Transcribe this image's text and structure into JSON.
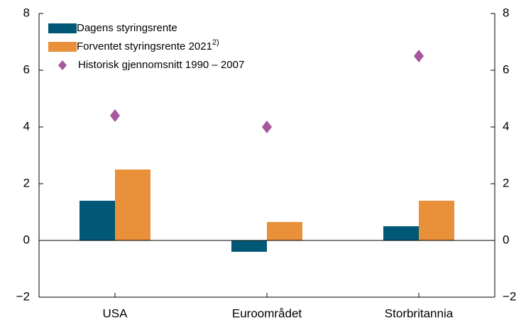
{
  "chart_data": {
    "type": "bar",
    "categories": [
      "USA",
      "Euroområdet",
      "Storbritannia"
    ],
    "series": [
      {
        "name": "Dagens styringsrente",
        "color": "#005776",
        "values": [
          1.4,
          -0.4,
          0.5
        ]
      },
      {
        "name": "Forventet styringsrente 2021",
        "name_note": "2)",
        "color": "#e8903a",
        "values": [
          2.5,
          0.65,
          1.4
        ]
      },
      {
        "name": "Historisk gjennomsnitt 1990 – 2007",
        "color": "#a6579e",
        "marker": "diamond",
        "values": [
          4.4,
          4.0,
          6.5
        ]
      }
    ],
    "ylim": [
      -2,
      8
    ],
    "yticks": [
      {
        "value": -2,
        "label": "−2"
      },
      0,
      2,
      4,
      6,
      8
    ],
    "y2lim": [
      -2,
      8
    ],
    "y2ticks": [
      {
        "value": -2,
        "label": "−2"
      },
      0,
      2,
      4,
      6,
      8
    ],
    "legend": "top-left"
  }
}
